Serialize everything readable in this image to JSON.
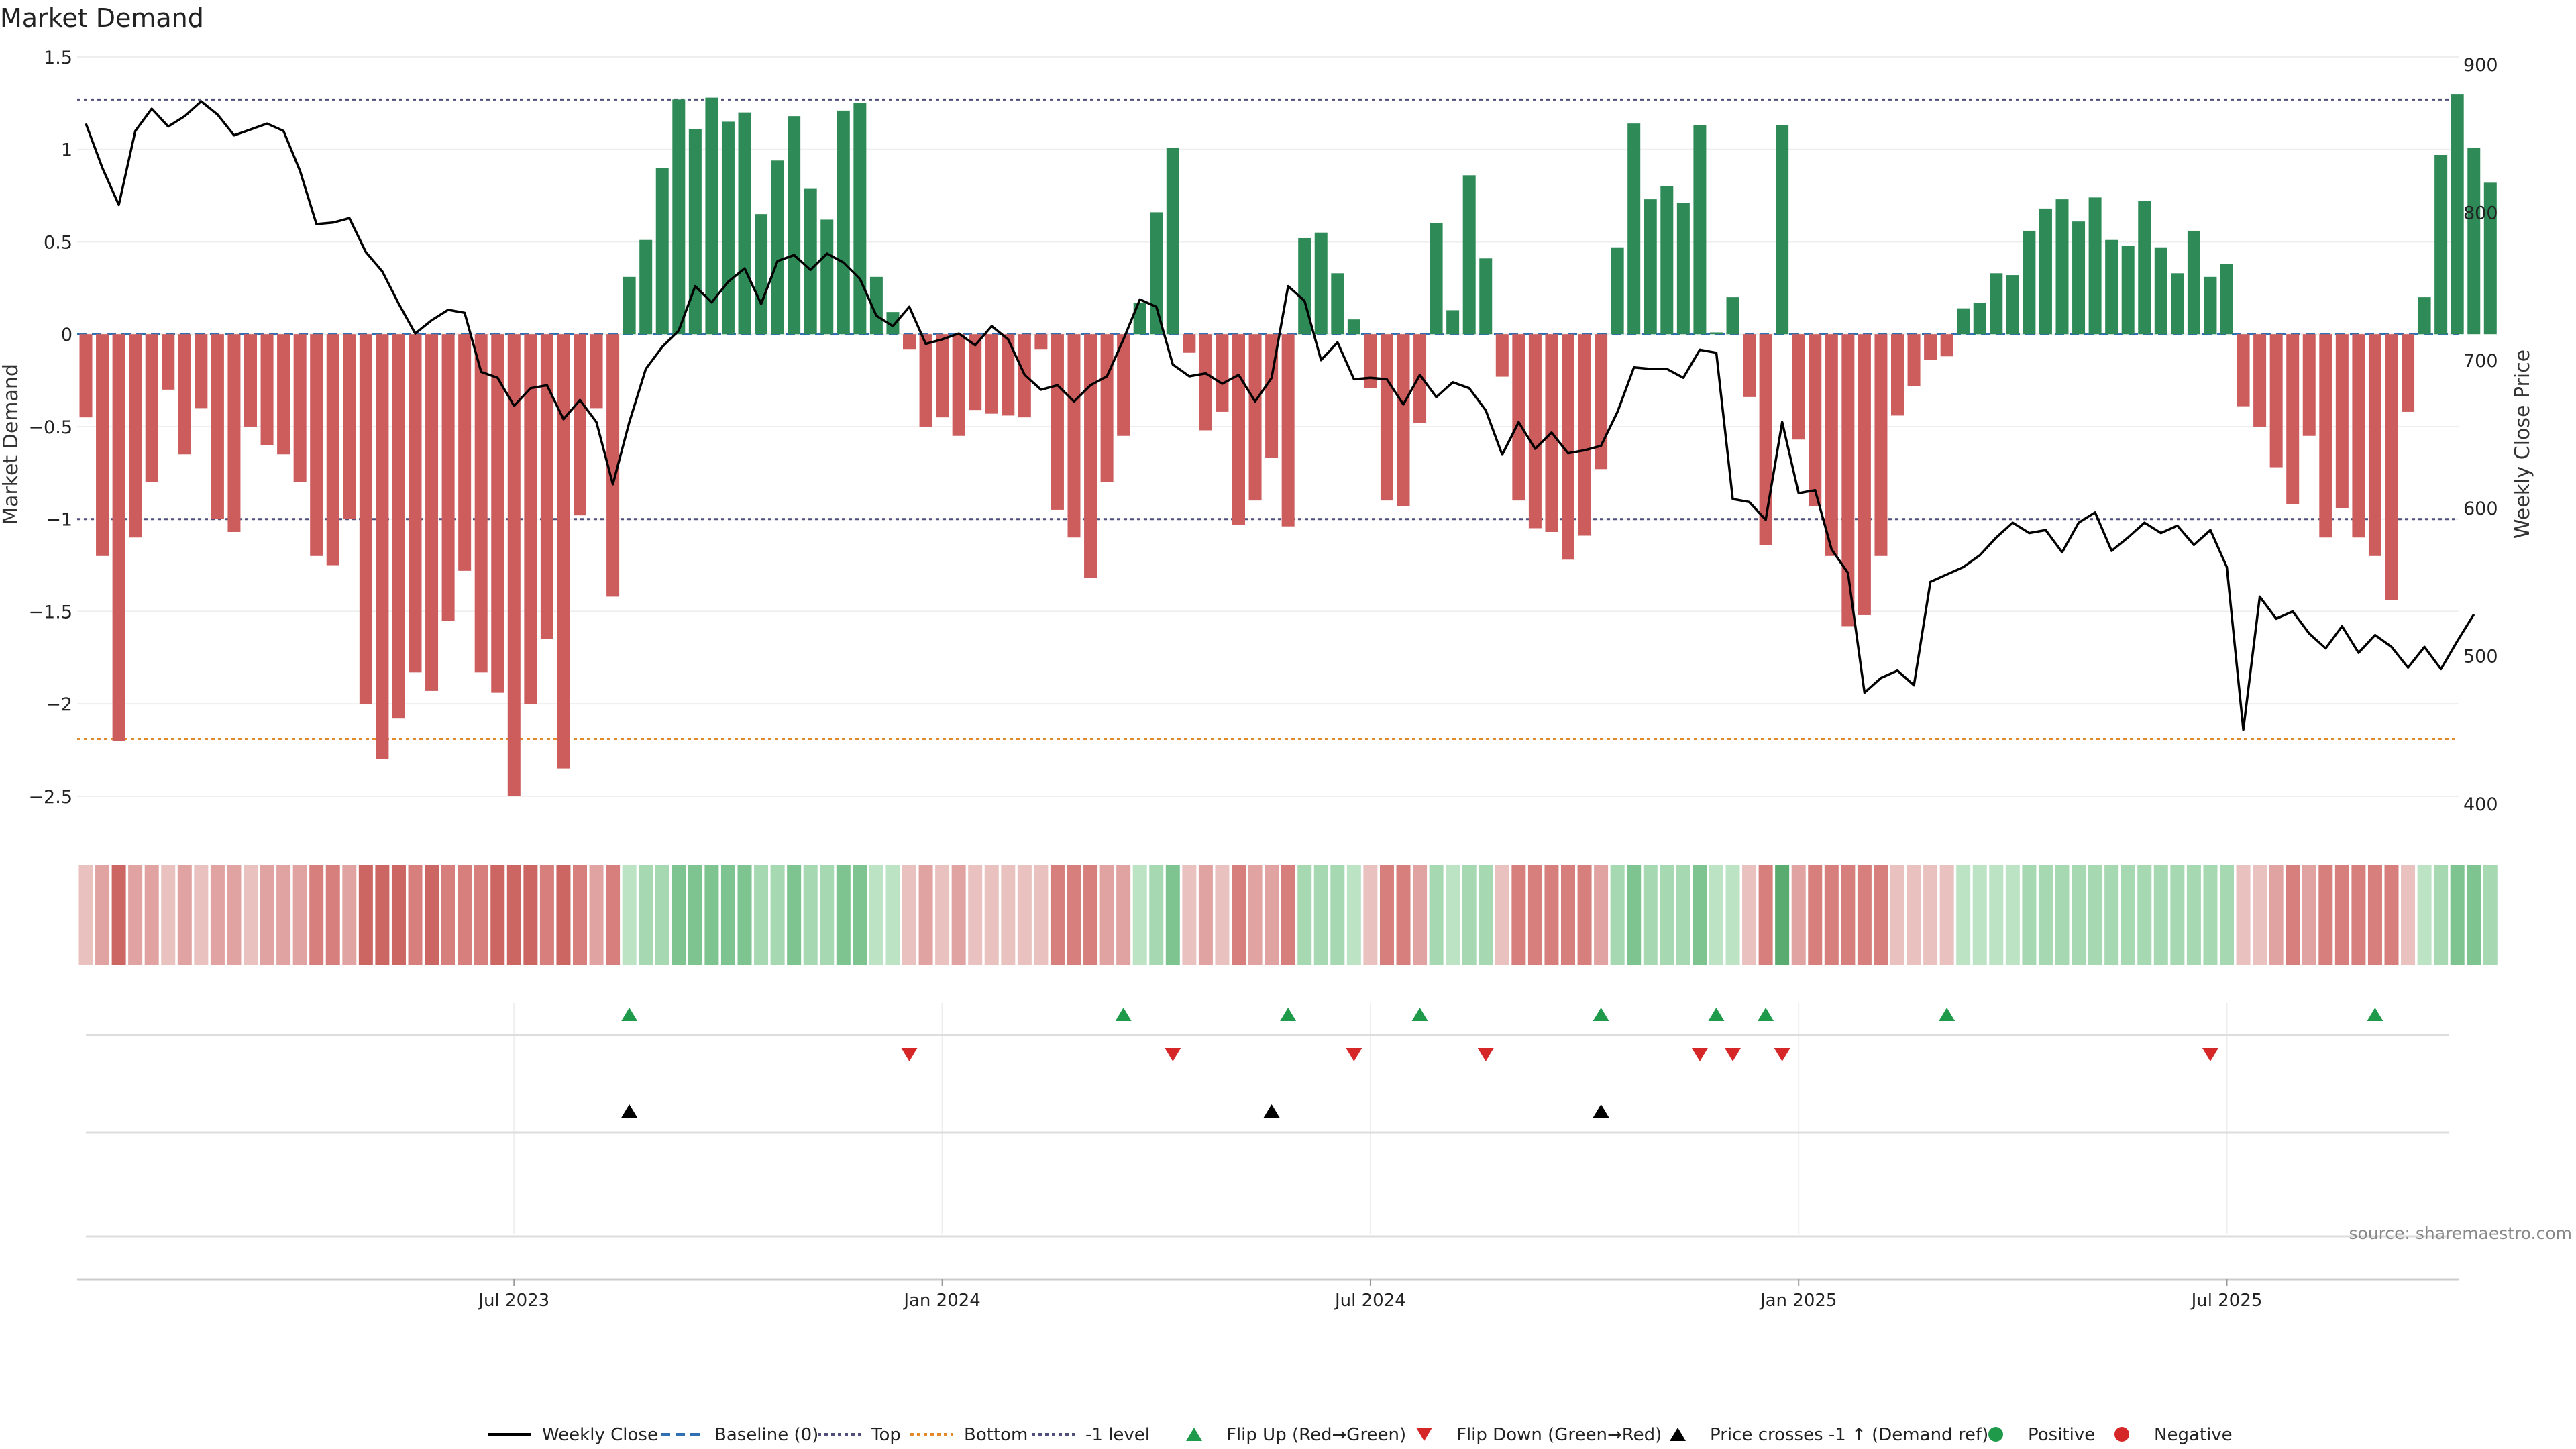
{
  "chart_data": {
    "type": "bar",
    "title": "Market Demand",
    "ylabel": "Market Demand",
    "y2label": "Weekly Close Price",
    "ylim": [
      -2.7,
      1.5
    ],
    "y2lim": [
      380,
      905
    ],
    "yticks": [
      1.5,
      1,
      0.5,
      0,
      -0.5,
      -1,
      -1.5,
      -2,
      -2.5
    ],
    "ytick_labels": [
      "1.5",
      "1",
      "0.5",
      "0",
      "−0.5",
      "−1",
      "−1.5",
      "−2",
      "−2.5"
    ],
    "y2ticks": [
      900,
      800,
      700,
      600,
      500,
      400
    ],
    "y2tick_labels": [
      "900",
      "800",
      "700",
      "600",
      "500",
      "400"
    ],
    "xticks": [
      {
        "week": 26,
        "label": "Jul 2023"
      },
      {
        "week": 52,
        "label": "Jan 2024"
      },
      {
        "week": 78,
        "label": "Jul 2024"
      },
      {
        "week": 104,
        "label": "Jan 2025"
      },
      {
        "week": 130,
        "label": "Jul 2025"
      }
    ],
    "reference_lines": {
      "top": 1.27,
      "bottom": -2.19,
      "minus_one_level": -1.0,
      "baseline": 0
    },
    "demand": [
      -0.45,
      -1.2,
      -2.2,
      -1.1,
      -0.8,
      -0.3,
      -0.65,
      -0.4,
      -1.0,
      -1.07,
      -0.5,
      -0.6,
      -0.65,
      -0.8,
      -1.2,
      -1.25,
      -1.0,
      -2.0,
      -2.3,
      -2.08,
      -1.83,
      -1.93,
      -1.55,
      -1.28,
      -1.83,
      -1.94,
      -2.5,
      -2.0,
      -1.65,
      -2.35,
      -0.98,
      -0.4,
      -1.42,
      0.31,
      0.51,
      0.9,
      1.27,
      1.11,
      1.28,
      1.15,
      1.2,
      0.65,
      0.94,
      1.18,
      0.79,
      0.62,
      1.21,
      1.25,
      0.31,
      0.12,
      -0.08,
      -0.5,
      -0.45,
      -0.55,
      -0.41,
      -0.43,
      -0.44,
      -0.45,
      -0.08,
      -0.95,
      -1.1,
      -1.32,
      -0.8,
      -0.55,
      0.17,
      0.66,
      1.01,
      -0.1,
      -0.52,
      -0.42,
      -1.03,
      -0.9,
      -0.67,
      -1.04,
      0.52,
      0.55,
      0.33,
      0.08,
      -0.29,
      -0.9,
      -0.93,
      -0.48,
      0.6,
      0.13,
      0.86,
      0.41,
      -0.23,
      -0.9,
      -1.05,
      -1.07,
      -1.22,
      -1.09,
      -0.73,
      0.47,
      1.14,
      0.73,
      0.8,
      0.71,
      1.13,
      0.01,
      0.2,
      -0.34,
      -1.14,
      1.13,
      -0.57,
      -0.93,
      -1.2,
      -1.58,
      -1.52,
      -1.2,
      -0.44,
      -0.28,
      -0.14,
      -0.12,
      0.14,
      0.17,
      0.33,
      0.32,
      0.56,
      0.68,
      0.73,
      0.61,
      0.74,
      0.51,
      0.48,
      0.72,
      0.47,
      0.33,
      0.56,
      0.31,
      0.38,
      -0.39,
      -0.5,
      -0.72,
      -0.92,
      -0.55,
      -1.1,
      -0.94,
      -1.1,
      -1.2,
      -1.44,
      -0.42,
      0.2,
      0.97,
      1.3,
      1.01,
      0.82
    ],
    "weekly_close": [
      860,
      830,
      805,
      855,
      870,
      858,
      865,
      875,
      866,
      852,
      856,
      860,
      855,
      828,
      792,
      793,
      796,
      773,
      760,
      738,
      718,
      727,
      734,
      732,
      692,
      688,
      669,
      681,
      683,
      660,
      673,
      658,
      616,
      658,
      694,
      709,
      720,
      750,
      739,
      753,
      762,
      738,
      767,
      771,
      761,
      772,
      766,
      755,
      730,
      723,
      736,
      711,
      714,
      718,
      710,
      723,
      714,
      690,
      680,
      683,
      672,
      683,
      689,
      714,
      741,
      736,
      697,
      689,
      691,
      684,
      690,
      672,
      688,
      750,
      740,
      700,
      712,
      687,
      688,
      687,
      670,
      690,
      675,
      685,
      681,
      666,
      636,
      658,
      640,
      651,
      637,
      639,
      642,
      665,
      695,
      694,
      694,
      688,
      707,
      705,
      606,
      604,
      592,
      658,
      610,
      612,
      572,
      556,
      475,
      485,
      490,
      480,
      550,
      555,
      560,
      568,
      580,
      590,
      583,
      585,
      570,
      590,
      597,
      571,
      580,
      590,
      583,
      588,
      575,
      585,
      560,
      450,
      540,
      525,
      530,
      515,
      505,
      520,
      502,
      514,
      506,
      492,
      506,
      491,
      510,
      528
    ]
  },
  "heatmap_levels": [
    1,
    2,
    4,
    2,
    2,
    1,
    2,
    1,
    2,
    2,
    1,
    2,
    2,
    2,
    3,
    3,
    2,
    4,
    4,
    4,
    3,
    4,
    3,
    3,
    3,
    4,
    4,
    4,
    3,
    4,
    3,
    2,
    3,
    1,
    2,
    2,
    3,
    3,
    3,
    3,
    3,
    2,
    2,
    3,
    2,
    2,
    3,
    3,
    1,
    1,
    1,
    2,
    1,
    2,
    1,
    1,
    1,
    1,
    1,
    3,
    3,
    3,
    2,
    2,
    1,
    2,
    3,
    1,
    2,
    1,
    3,
    2,
    2,
    3,
    2,
    2,
    2,
    1,
    1,
    3,
    3,
    2,
    2,
    1,
    2,
    2,
    1,
    3,
    3,
    3,
    3,
    3,
    2,
    2,
    3,
    2,
    2,
    2,
    3,
    1,
    1,
    1,
    3,
    4,
    2,
    3,
    3,
    3,
    3,
    3,
    1,
    1,
    1,
    1,
    1,
    1,
    1,
    1,
    2,
    2,
    2,
    2,
    2,
    2,
    2,
    2,
    2,
    2,
    2,
    2,
    2,
    1,
    1,
    2,
    3,
    2,
    3,
    3,
    3,
    3,
    3,
    1,
    1,
    2,
    3,
    3,
    2
  ],
  "flip_up_weeks": [
    33,
    63,
    73,
    81,
    92,
    99,
    102,
    113,
    139
  ],
  "flip_down_weeks": [
    50,
    66,
    77,
    85,
    98,
    100,
    103,
    129
  ],
  "price_cross_weeks": [
    33,
    72,
    92
  ],
  "colors": {
    "positive_bar": "#2e8b57",
    "negative_bar": "#cd5c5c",
    "line": "#000000",
    "top_line": "#4f4f7a",
    "bottom_line": "#e08a2c",
    "baseline": "#2f6fb2",
    "flip_up": "#1f9a4a",
    "flip_down": "#d62728",
    "price_cross": "#000000",
    "green_shades": [
      "#d0ecd6",
      "#bde3c5",
      "#a6d8b2",
      "#7dc490",
      "#5aab6f"
    ],
    "red_shades": [
      "#f0d5d3",
      "#e9c1bf",
      "#e0a3a1",
      "#d67f7c",
      "#cc6663"
    ]
  },
  "source": "source: sharemaestro.com",
  "legend": [
    {
      "label": "Weekly Close",
      "marker": "solid-line"
    },
    {
      "label": "Baseline (0)",
      "marker": "dashed-line"
    },
    {
      "label": "Top",
      "marker": "dotted-line"
    },
    {
      "label": "Bottom",
      "marker": "dotted-orange-line"
    },
    {
      "label": "-1 level",
      "marker": "dotted-line"
    },
    {
      "label": "Flip Up (Red→Green)",
      "marker": "triangle-up-green"
    },
    {
      "label": "Flip Down (Green→Red)",
      "marker": "triangle-down-red"
    },
    {
      "label": "Price crosses -1 ↑ (Demand ref)",
      "marker": "triangle-up-black"
    },
    {
      "label": "Positive",
      "marker": "circle-green"
    },
    {
      "label": "Negative",
      "marker": "circle-red"
    }
  ]
}
